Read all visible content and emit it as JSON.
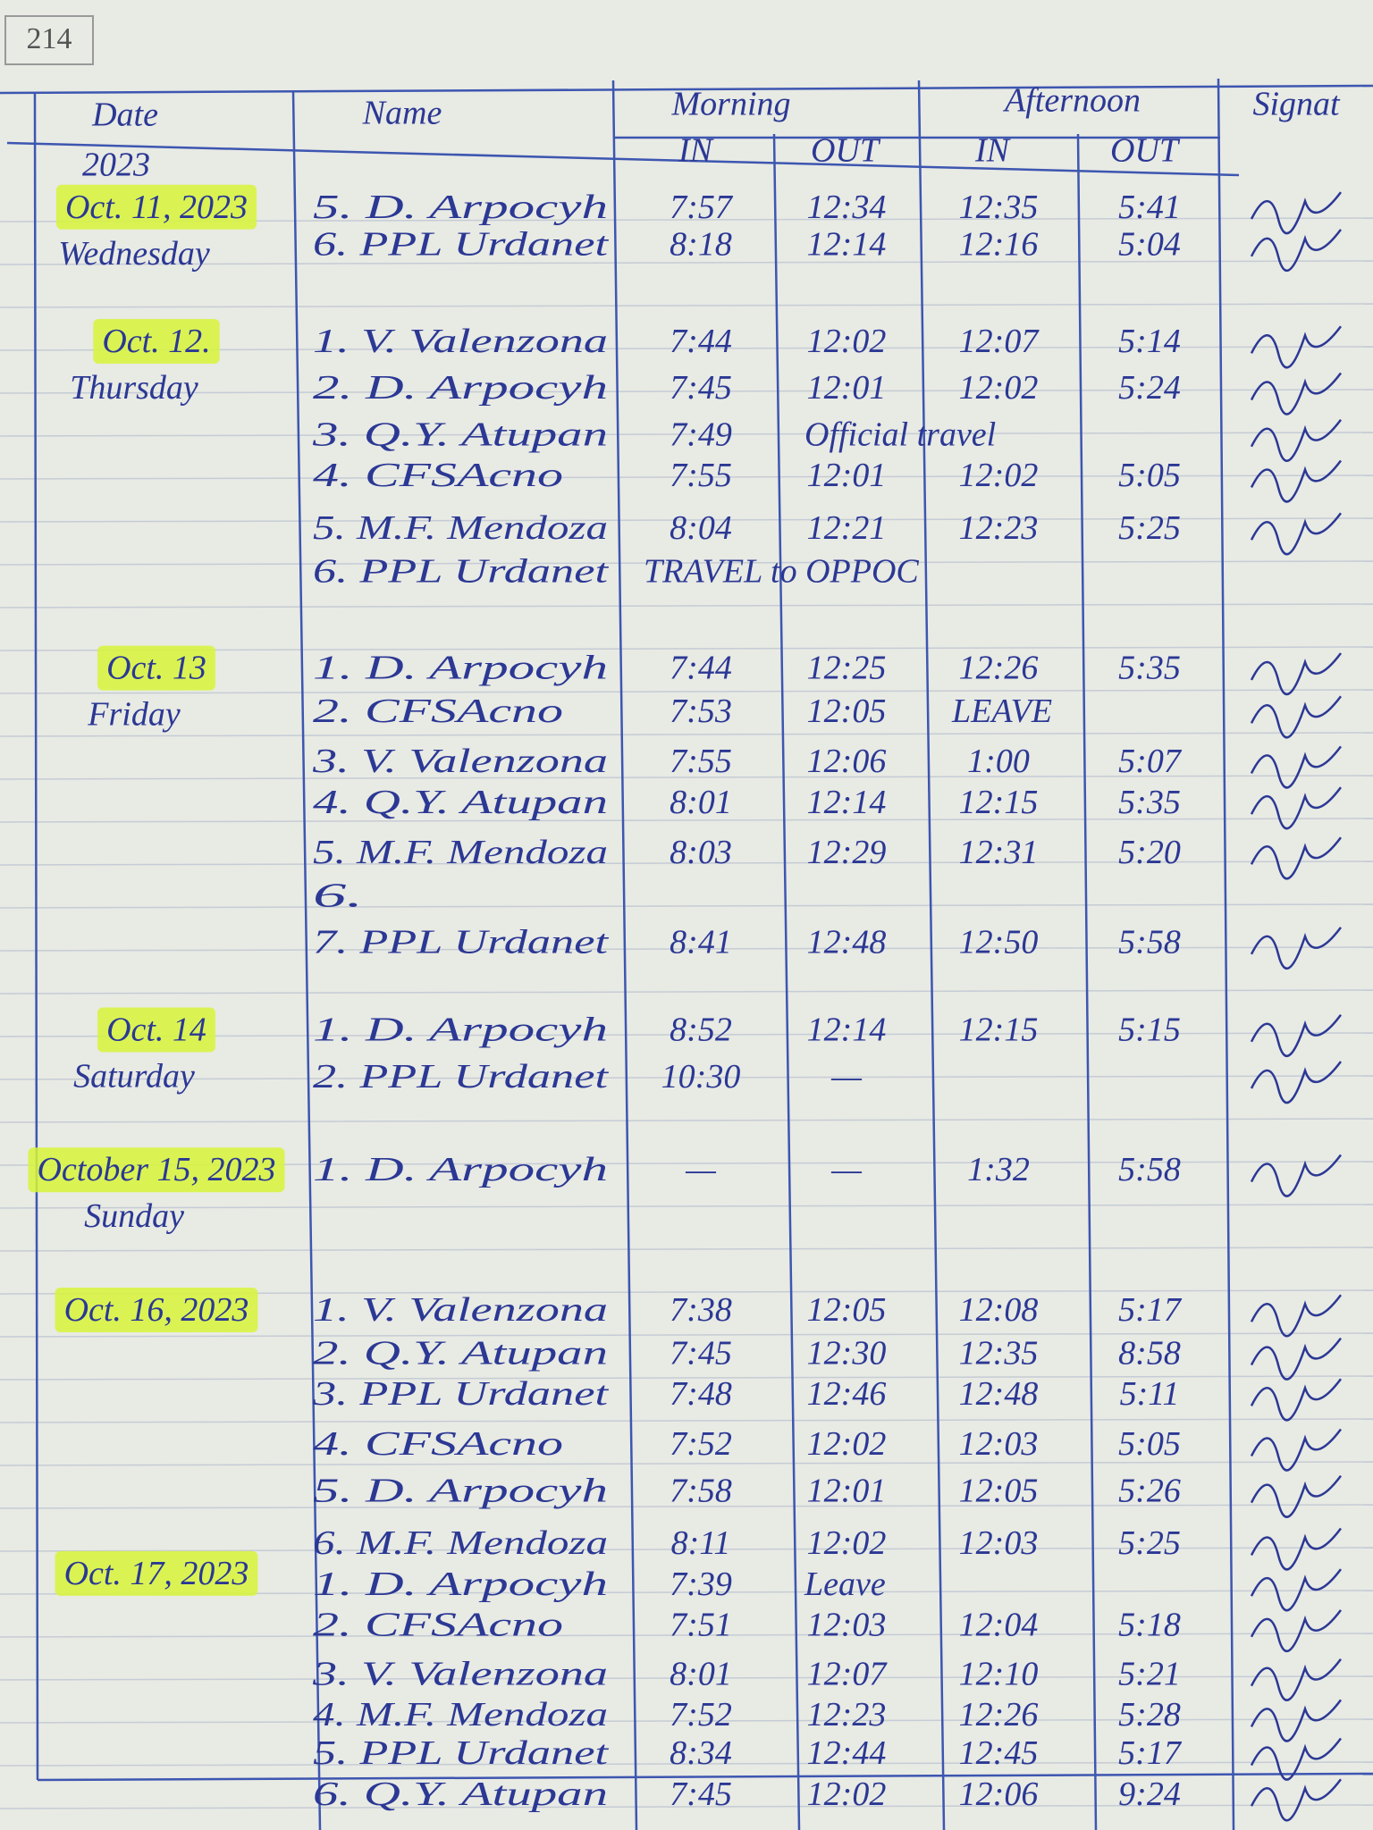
{
  "page_number": "214",
  "header": {
    "date": "Date",
    "year": "2023",
    "name": "Name",
    "morning": "Morning",
    "afternoon": "Afternoon",
    "signature": "Signat",
    "morning_in": "IN",
    "morning_out": "OUT",
    "afternoon_in": "IN",
    "afternoon_out": "OUT"
  },
  "days": [
    {
      "date": "Oct. 11, 2023",
      "weekday": "Wednesday",
      "entries": [
        {
          "name": "5. D. Arpocyh",
          "times": [
            "7:57",
            "12:34",
            "12:35",
            "5:41"
          ]
        },
        {
          "name": "6. PPL Urdanet",
          "times": [
            "8:18",
            "12:14",
            "12:16",
            "5:04"
          ]
        }
      ]
    },
    {
      "date": "Oct. 12.",
      "weekday": "Thursday",
      "entries": [
        {
          "name": "1. V. Valenzona",
          "times": [
            "7:44",
            "12:02",
            "12:07",
            "5:14"
          ]
        },
        {
          "name": "2. D. Arpocyh",
          "times": [
            "7:45",
            "12:01",
            "12:02",
            "5:24"
          ]
        },
        {
          "name": "3. Q.Y. Atupan",
          "times": [
            "7:49"
          ],
          "note": "Official travel"
        },
        {
          "name": "4. CFSAcno",
          "times": [
            "7:55",
            "12:01",
            "12:02",
            "5:05"
          ]
        },
        {
          "name": "5. M.F. Mendoza",
          "times": [
            "8:04",
            "12:21",
            "12:23",
            "5:25"
          ]
        },
        {
          "name": "6. PPL Urdanet",
          "times": [],
          "note": "TRAVEL to OPPOC"
        }
      ]
    },
    {
      "date": "Oct. 13",
      "weekday": "Friday",
      "entries": [
        {
          "name": "1. D. Arpocyh",
          "times": [
            "7:44",
            "12:25",
            "12:26",
            "5:35"
          ]
        },
        {
          "name": "2. CFSAcno",
          "times": [
            "7:53",
            "12:05"
          ],
          "note": "LEAVE"
        },
        {
          "name": "3. V. Valenzona",
          "times": [
            "7:55",
            "12:06",
            "1:00",
            "5:07"
          ]
        },
        {
          "name": "4. Q.Y. Atupan",
          "times": [
            "8:01",
            "12:14",
            "12:15",
            "5:35"
          ]
        },
        {
          "name": "5. M.F. Mendoza",
          "times": [
            "8:03",
            "12:29",
            "12:31",
            "5:20"
          ]
        },
        {
          "name": "6.",
          "times": []
        },
        {
          "name": "7. PPL Urdanet",
          "times": [
            "8:41",
            "12:48",
            "12:50",
            "5:58"
          ]
        }
      ]
    },
    {
      "date": "Oct. 14",
      "weekday": "Saturday",
      "entries": [
        {
          "name": "1. D. Arpocyh",
          "times": [
            "8:52",
            "12:14",
            "12:15",
            "5:15"
          ]
        },
        {
          "name": "2. PPL Urdanet",
          "times": [
            "10:30",
            "—"
          ]
        }
      ]
    },
    {
      "date": "October 15, 2023",
      "weekday": "Sunday",
      "entries": [
        {
          "name": "1. D. Arpocyh",
          "times": [
            "—",
            "—",
            "1:32",
            "5:58"
          ]
        }
      ]
    },
    {
      "date": "Oct. 16, 2023",
      "entries": [
        {
          "name": "1. V. Valenzona",
          "times": [
            "7:38",
            "12:05",
            "12:08",
            "5:17"
          ]
        },
        {
          "name": "2. Q.Y. Atupan",
          "times": [
            "7:45",
            "12:30",
            "12:35",
            "8:58"
          ]
        },
        {
          "name": "3. PPL Urdanet",
          "times": [
            "7:48",
            "12:46",
            "12:48",
            "5:11"
          ]
        },
        {
          "name": "4. CFSAcno",
          "times": [
            "7:52",
            "12:02",
            "12:03",
            "5:05"
          ]
        },
        {
          "name": "5. D. Arpocyh",
          "times": [
            "7:58",
            "12:01",
            "12:05",
            "5:26"
          ]
        },
        {
          "name": "6. M.F. Mendoza",
          "times": [
            "8:11",
            "12:02",
            "12:03",
            "5:25"
          ]
        }
      ]
    },
    {
      "date": "Oct. 17, 2023",
      "entries": [
        {
          "name": "1. D. Arpocyh",
          "times": [
            "7:39"
          ],
          "note": "Leave"
        },
        {
          "name": "2. CFSAcno",
          "times": [
            "7:51",
            "12:03",
            "12:04",
            "5:18"
          ]
        },
        {
          "name": "3. V. Valenzona",
          "times": [
            "8:01",
            "12:07",
            "12:10",
            "5:21"
          ]
        },
        {
          "name": "4. M.F. Mendoza",
          "times": [
            "7:52",
            "12:23",
            "12:26",
            "5:28"
          ]
        },
        {
          "name": "5. PPL Urdanet",
          "times": [
            "8:34",
            "12:44",
            "12:45",
            "5:17"
          ]
        },
        {
          "name": "6. Q.Y. Atupan",
          "times": [
            "7:45",
            "12:02",
            "12:06",
            "9:24"
          ]
        }
      ]
    }
  ]
}
